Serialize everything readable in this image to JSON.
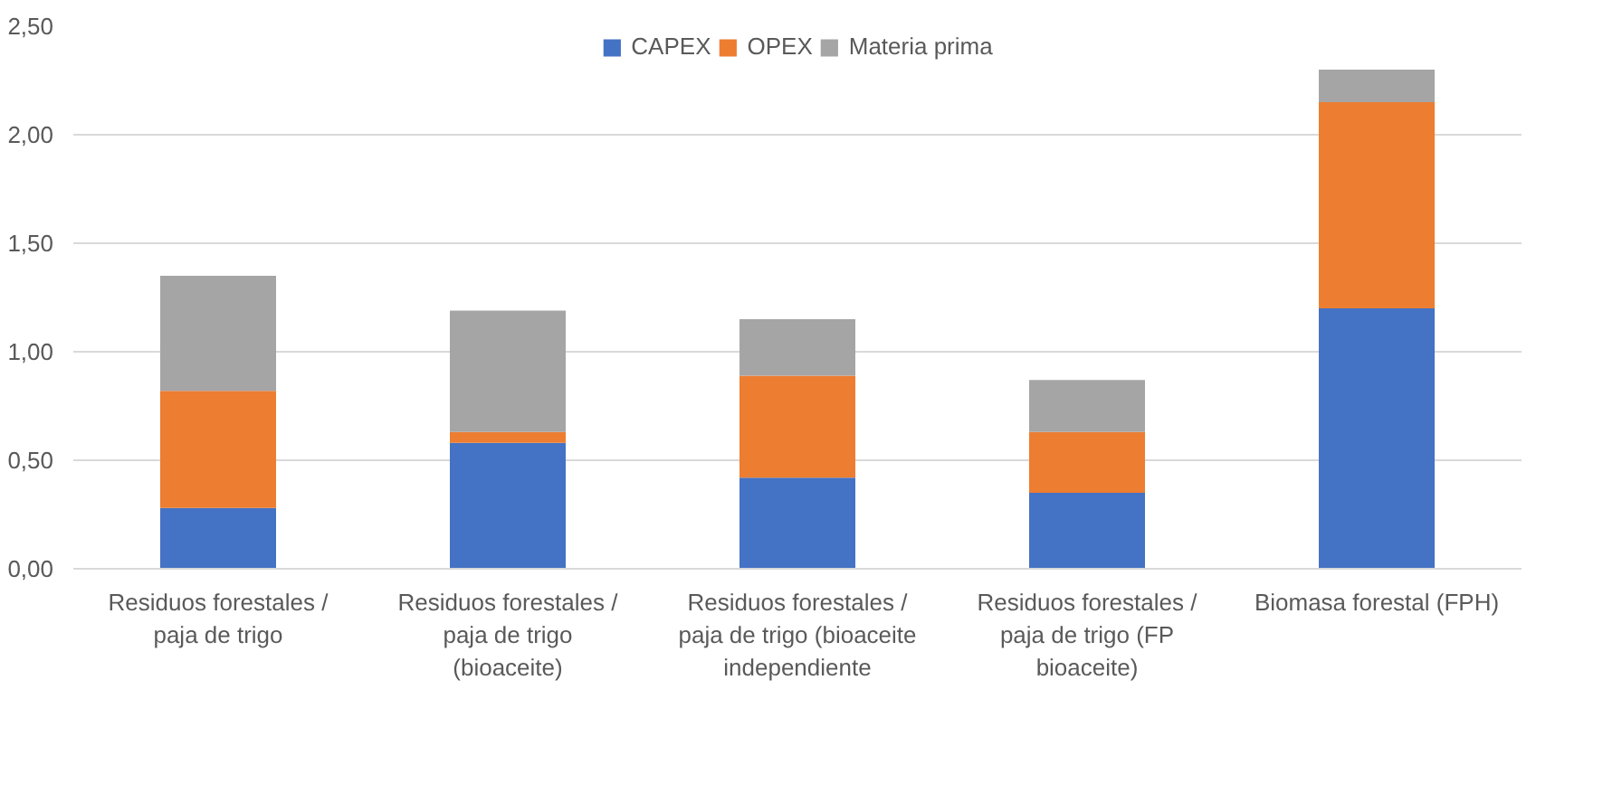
{
  "chart_data": {
    "type": "bar",
    "stacked": true,
    "categories": [
      "Residuos forestales / paja de trigo",
      "Residuos forestales / paja de trigo (bioaceite)",
      "Residuos forestales / paja de trigo (bioaceite independiente",
      "Residuos forestales / paja de trigo (FP bioaceite)",
      "Biomasa forestal (FPH)"
    ],
    "series": [
      {
        "name": "CAPEX",
        "color": "#4472c4",
        "values": [
          0.28,
          0.58,
          0.42,
          0.35,
          1.2
        ]
      },
      {
        "name": "OPEX",
        "color": "#ed7d31",
        "values": [
          0.54,
          0.05,
          0.47,
          0.28,
          0.95
        ]
      },
      {
        "name": "Materia prima",
        "color": "#a5a5a5",
        "values": [
          0.53,
          0.56,
          0.26,
          0.24,
          0.15
        ]
      }
    ],
    "ylim": [
      0,
      2.5
    ],
    "yticks": [
      {
        "value": 0,
        "label": "0,00"
      },
      {
        "value": 0.5,
        "label": "0,50"
      },
      {
        "value": 1,
        "label": "1,00"
      },
      {
        "value": 1.5,
        "label": "1,50"
      },
      {
        "value": 2,
        "label": "2,00"
      },
      {
        "value": 2.5,
        "label": "2,50"
      }
    ],
    "grid": "y",
    "legend": "top"
  }
}
